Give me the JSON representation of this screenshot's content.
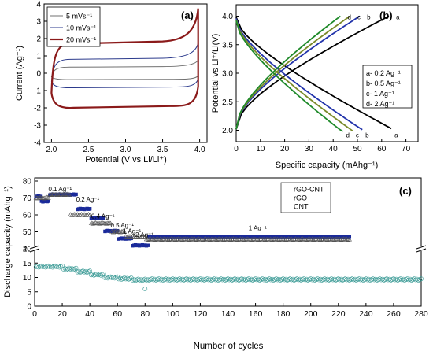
{
  "chart_data": [
    {
      "panel": "(a)",
      "type": "line",
      "xlabel": "Potential (V vs  Li/Li⁺)",
      "ylabel": "Current (Ag⁻¹)",
      "xlim": [
        1.9,
        4.1
      ],
      "ylim": [
        -4,
        4
      ],
      "xticks": [
        "2.0",
        "2.5",
        "3.0",
        "3.5",
        "4.0"
      ],
      "yticks": [
        "-4",
        "-3",
        "-2",
        "-1",
        "0",
        "1",
        "2",
        "3",
        "4"
      ],
      "legend_position": "top-left",
      "series": [
        {
          "name": "5 mVs⁻¹",
          "color": "#707070",
          "upper": 0.35,
          "lower": -0.35
        },
        {
          "name": "10 mVs⁻¹",
          "color": "#2b3a8c",
          "upper": 0.8,
          "lower": -0.8
        },
        {
          "name": "20 mVs⁻¹",
          "color": "#8b1a1a",
          "upper": 1.7,
          "lower": -1.9
        }
      ]
    },
    {
      "panel": "(b)",
      "type": "line",
      "xlabel": "Specific capacity (mAhg⁻¹)",
      "ylabel": "Potential vs Li⁺/Li(V)",
      "xlim": [
        0,
        75
      ],
      "ylim": [
        1.8,
        4.2
      ],
      "xticks": [
        "0",
        "10",
        "20",
        "30",
        "40",
        "50",
        "60",
        "70"
      ],
      "yticks": [
        "2.0",
        "2.5",
        "3.0",
        "3.5",
        "4.0"
      ],
      "legend_position": "right",
      "series": [
        {
          "name": "a- 0.2 Ag⁻¹",
          "tag": "a",
          "color": "#000000",
          "capacity": 64
        },
        {
          "name": "b- 0.5 Ag⁻¹",
          "tag": "b",
          "color": "#2233aa",
          "capacity": 52
        },
        {
          "name": "c- 1 Ag⁻¹",
          "tag": "c",
          "color": "#7a8a2a",
          "capacity": 48
        },
        {
          "name": "d- 2 Ag⁻¹",
          "tag": "d",
          "color": "#1f8a2a",
          "capacity": 44
        }
      ]
    },
    {
      "panel": "(c)",
      "type": "scatter",
      "xlabel": "Number of cycles",
      "ylabel": "Discharge capacity (mAhg⁻¹)",
      "xlim": [
        0,
        280
      ],
      "y_break": true,
      "upper_ylim": [
        40,
        80
      ],
      "lower_ylim": [
        0,
        20
      ],
      "xticks": [
        "0",
        "20",
        "40",
        "60",
        "80",
        "100",
        "120",
        "140",
        "160",
        "180",
        "200",
        "220",
        "240",
        "260",
        "280"
      ],
      "upper_yticks": [
        "40",
        "50",
        "60",
        "70",
        "80"
      ],
      "lower_yticks": [
        "0",
        "5",
        "10",
        "15",
        "20"
      ],
      "legend_position": "top-right",
      "rate_labels": [
        {
          "text": "0.1 Ag⁻¹",
          "cycle": 10,
          "value": 74
        },
        {
          "text": "0.2 Ag⁻¹",
          "cycle": 30,
          "value": 68
        },
        {
          "text": "0.4 Ag⁻¹",
          "cycle": 41,
          "value": 58
        },
        {
          "text": "0.5 Ag⁻¹",
          "cycle": 55,
          "value": 52.5
        },
        {
          "text": "1 Ag⁻¹",
          "cycle": 64,
          "value": 49
        },
        {
          "text": "2 Ag⁻¹",
          "cycle": 73,
          "value": 47
        },
        {
          "text": "1 Ag⁻¹",
          "cycle": 155,
          "value": 51
        }
      ],
      "series": [
        {
          "name": "rGO-CNT",
          "marker": "square",
          "color": "#1a2a9a",
          "segments": [
            [
              0,
              4,
              71
            ],
            [
              4,
              10,
              68
            ],
            [
              10,
              30,
              72
            ],
            [
              30,
              40,
              63.5
            ],
            [
              40,
              50,
              58
            ],
            [
              50,
              60,
              50.5
            ],
            [
              60,
              70,
              46
            ],
            [
              70,
              82,
              42
            ],
            [
              82,
              228,
              47
            ]
          ]
        },
        {
          "name": "rGO",
          "marker": "triangle",
          "color": "#555555",
          "segments": [
            [
              0,
              10,
              70
            ],
            [
              10,
              25,
              72
            ],
            [
              25,
              40,
              60
            ],
            [
              40,
              55,
              55
            ],
            [
              55,
              65,
              50
            ],
            [
              65,
              80,
              47
            ],
            [
              80,
              228,
              45.5
            ]
          ]
        },
        {
          "name": "CNT",
          "marker": "circle",
          "color": "#3a9a95",
          "segments": [
            [
              0,
              20,
              13.8
            ],
            [
              20,
              30,
              13
            ],
            [
              30,
              40,
              12
            ],
            [
              40,
              50,
              11
            ],
            [
              50,
              60,
              10
            ],
            [
              60,
              70,
              9.6
            ],
            [
              70,
              82,
              9.2
            ],
            [
              82,
              280,
              9.3
            ]
          ]
        }
      ]
    }
  ]
}
